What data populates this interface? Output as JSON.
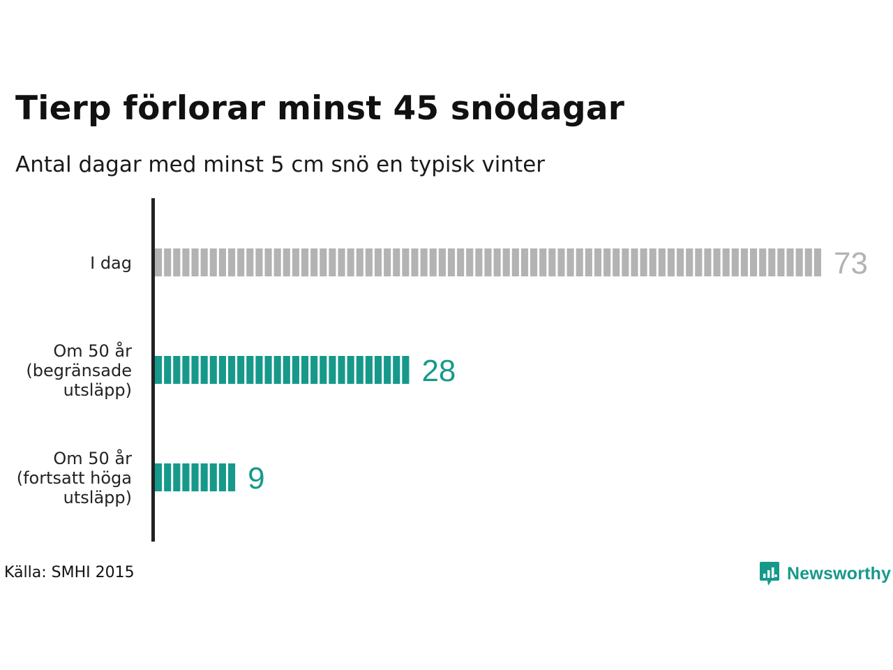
{
  "title": "Tierp förlorar minst 45 snödagar",
  "subtitle": "Antal dagar med minst 5 cm snö en typisk vinter",
  "source": "Källa: SMHI 2015",
  "brand": {
    "name": "Newsworthy",
    "icon": "newsworthy-logo-icon",
    "color": "#16998a"
  },
  "chart_data": {
    "type": "bar",
    "orientation": "horizontal",
    "title": "Tierp förlorar minst 45 snödagar",
    "subtitle": "Antal dagar med minst 5 cm snö en typisk vinter",
    "categories": [
      [
        "I dag"
      ],
      [
        "Om 50 år",
        "(begränsade",
        "utsläpp)"
      ],
      [
        "Om 50 år",
        "(fortsatt höga",
        "utsläpp)"
      ]
    ],
    "values": [
      73,
      28,
      9
    ],
    "colors": [
      "#b3b3b3",
      "#16998a",
      "#16998a"
    ],
    "value_label_colors": [
      "#b3b3b3",
      "#16998a",
      "#16998a"
    ],
    "xlim": [
      0,
      73
    ],
    "grid": false,
    "legend": "none"
  }
}
